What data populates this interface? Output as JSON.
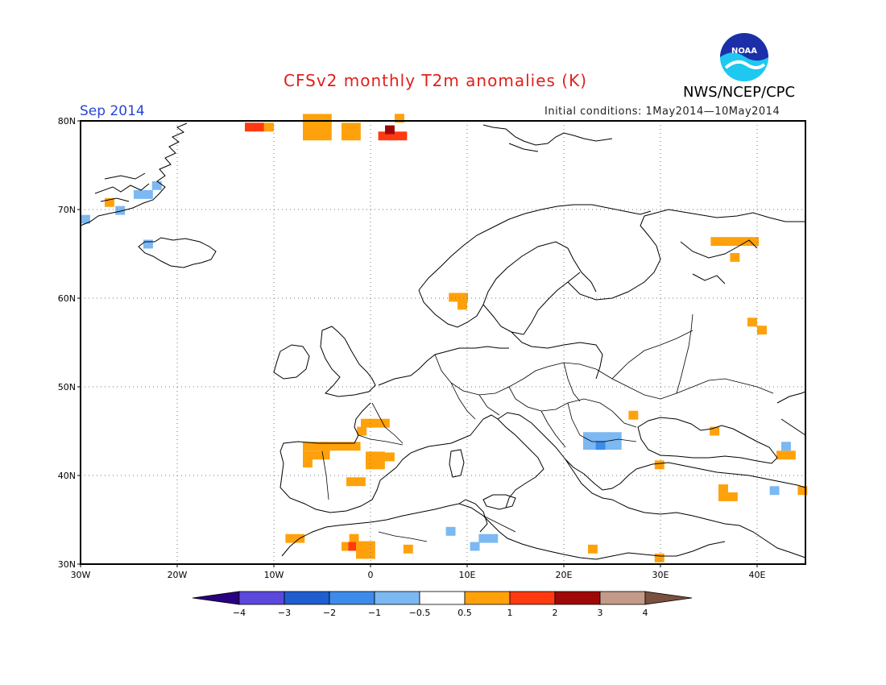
{
  "title": "CFSv2 monthly T2m anomalies (K)",
  "month": "Sep 2014",
  "initial_conditions": "Initial conditions: 1May2014—10May2014",
  "agency": "NWS/NCEP/CPC",
  "logo_text": "NOAA",
  "map": {
    "lon_range": [
      -30,
      45
    ],
    "lat_range": [
      30,
      80
    ],
    "lat_ticks": [
      {
        "v": 80,
        "label": "80N"
      },
      {
        "v": 70,
        "label": "70N"
      },
      {
        "v": 60,
        "label": "60N"
      },
      {
        "v": 50,
        "label": "50N"
      },
      {
        "v": 40,
        "label": "40N"
      },
      {
        "v": 30,
        "label": "30N"
      }
    ],
    "lon_ticks": [
      {
        "v": -30,
        "label": "30W"
      },
      {
        "v": -20,
        "label": "20W"
      },
      {
        "v": -10,
        "label": "10W"
      },
      {
        "v": 0,
        "label": "0"
      },
      {
        "v": 10,
        "label": "10E"
      },
      {
        "v": 20,
        "label": "20E"
      },
      {
        "v": 30,
        "label": "30E"
      },
      {
        "v": 40,
        "label": "40E"
      }
    ],
    "cell_deg": 1.875,
    "anomaly_cells": [
      {
        "lon": -30,
        "lat": 68.4,
        "w": 1,
        "h": 1,
        "value": -0.7
      },
      {
        "lon": -26.4,
        "lat": 69.4,
        "w": 1,
        "h": 1,
        "value": -0.7
      },
      {
        "lon": -24.5,
        "lat": 71.2,
        "w": 2,
        "h": 1,
        "value": -0.7
      },
      {
        "lon": -22.6,
        "lat": 72.2,
        "w": 1,
        "h": 1,
        "value": -0.7
      },
      {
        "lon": -23.5,
        "lat": 65.6,
        "w": 1,
        "h": 1,
        "value": -0.7
      },
      {
        "lon": -27.5,
        "lat": 70.3,
        "w": 1,
        "h": 1,
        "value": 0.7
      },
      {
        "lon": -13.0,
        "lat": 78.8,
        "w": 2,
        "h": 1,
        "value": 1.2
      },
      {
        "lon": -11.0,
        "lat": 78.8,
        "w": 1,
        "h": 1,
        "value": 0.7
      },
      {
        "lon": -7.0,
        "lat": 77.8,
        "w": 3,
        "h": 3,
        "value": 0.7
      },
      {
        "lon": -3.0,
        "lat": 77.8,
        "w": 2,
        "h": 2,
        "value": 0.7
      },
      {
        "lon": 0.8,
        "lat": 77.8,
        "w": 3,
        "h": 1,
        "value": 1.2
      },
      {
        "lon": 1.5,
        "lat": 78.5,
        "w": 1,
        "h": 1,
        "value": 2.5
      },
      {
        "lon": 2.5,
        "lat": 79.8,
        "w": 1,
        "h": 1,
        "value": 0.7
      },
      {
        "lon": 8.1,
        "lat": 59.6,
        "w": 2,
        "h": 1,
        "value": 0.7
      },
      {
        "lon": 9.0,
        "lat": 58.7,
        "w": 1,
        "h": 1,
        "value": 0.7
      },
      {
        "lon": -1.0,
        "lat": 45.4,
        "w": 3,
        "h": 1,
        "value": 0.7
      },
      {
        "lon": -1.4,
        "lat": 44.5,
        "w": 1,
        "h": 1,
        "value": 0.7
      },
      {
        "lon": -7.0,
        "lat": 42.8,
        "w": 6,
        "h": 1,
        "value": 0.7
      },
      {
        "lon": -7.0,
        "lat": 41.8,
        "w": 2,
        "h": 1,
        "value": 0.7
      },
      {
        "lon": -5.2,
        "lat": 41.8,
        "w": 1,
        "h": 2,
        "value": 0.7
      },
      {
        "lon": -7.0,
        "lat": 40.9,
        "w": 1,
        "h": 1,
        "value": 0.7
      },
      {
        "lon": 0.5,
        "lat": 41.6,
        "w": 2,
        "h": 1,
        "value": 0.7
      },
      {
        "lon": -0.5,
        "lat": 40.7,
        "w": 2,
        "h": 2,
        "value": 0.7
      },
      {
        "lon": -2.5,
        "lat": 38.8,
        "w": 2,
        "h": 1,
        "value": 0.7
      },
      {
        "lon": -8.8,
        "lat": 32.4,
        "w": 2,
        "h": 1,
        "value": 0.7
      },
      {
        "lon": -2.2,
        "lat": 32.4,
        "w": 1,
        "h": 1,
        "value": 0.7
      },
      {
        "lon": -3.0,
        "lat": 31.5,
        "w": 2,
        "h": 1,
        "value": 0.7
      },
      {
        "lon": -2.3,
        "lat": 31.5,
        "w": 1,
        "h": 1,
        "value": 1.2
      },
      {
        "lon": -1.5,
        "lat": 30.6,
        "w": 2,
        "h": 2,
        "value": 0.7
      },
      {
        "lon": 3.4,
        "lat": 31.2,
        "w": 1,
        "h": 1,
        "value": 0.7
      },
      {
        "lon": 7.8,
        "lat": 33.2,
        "w": 1,
        "h": 1,
        "value": -0.7
      },
      {
        "lon": 11.2,
        "lat": 32.4,
        "w": 2,
        "h": 1,
        "value": -0.7
      },
      {
        "lon": 10.3,
        "lat": 31.5,
        "w": 1,
        "h": 1,
        "value": -0.7
      },
      {
        "lon": 22.0,
        "lat": 42.9,
        "w": 4,
        "h": 2,
        "value": -0.7
      },
      {
        "lon": 23.3,
        "lat": 42.9,
        "w": 1,
        "h": 1,
        "value": -1.5
      },
      {
        "lon": 26.7,
        "lat": 46.3,
        "w": 1,
        "h": 1,
        "value": 0.7
      },
      {
        "lon": 35.1,
        "lat": 44.5,
        "w": 1,
        "h": 1,
        "value": 0.7
      },
      {
        "lon": 29.4,
        "lat": 40.7,
        "w": 1,
        "h": 1,
        "value": 0.7
      },
      {
        "lon": 36.0,
        "lat": 38.0,
        "w": 1,
        "h": 1,
        "value": 0.7
      },
      {
        "lon": 36.0,
        "lat": 37.1,
        "w": 2,
        "h": 1,
        "value": 0.7
      },
      {
        "lon": 42.0,
        "lat": 41.8,
        "w": 2,
        "h": 1,
        "value": 0.7
      },
      {
        "lon": 42.5,
        "lat": 42.8,
        "w": 1,
        "h": 1,
        "value": -0.7
      },
      {
        "lon": 41.3,
        "lat": 37.8,
        "w": 1,
        "h": 1,
        "value": -0.7
      },
      {
        "lon": 44.2,
        "lat": 37.8,
        "w": 1,
        "h": 1,
        "value": 0.7
      },
      {
        "lon": 22.5,
        "lat": 31.2,
        "w": 1,
        "h": 1,
        "value": 0.7
      },
      {
        "lon": 29.4,
        "lat": 30.2,
        "w": 1,
        "h": 1,
        "value": 0.7
      },
      {
        "lon": 35.2,
        "lat": 65.9,
        "w": 5,
        "h": 1,
        "value": 0.7
      },
      {
        "lon": 37.2,
        "lat": 64.1,
        "w": 1,
        "h": 1,
        "value": 0.7
      },
      {
        "lon": 39.0,
        "lat": 56.8,
        "w": 1,
        "h": 1,
        "value": 0.7
      },
      {
        "lon": 40.0,
        "lat": 55.9,
        "w": 1,
        "h": 1,
        "value": 0.7
      }
    ]
  },
  "colorbar": {
    "labels": [
      "−4",
      "−3",
      "−2",
      "−1",
      "−0.5",
      "0.5",
      "1",
      "2",
      "3",
      "4"
    ],
    "low_color": "#2a0082",
    "high_color": "#7a5040",
    "colors": [
      "#5b49dc",
      "#1f5ed0",
      "#3d8bea",
      "#7cb8f2",
      "#ffffff",
      "#ffa10a",
      "#ff3a10",
      "#a00808",
      "#c49a88"
    ],
    "thresholds": [
      -4,
      -3,
      -2,
      -1,
      -0.5,
      0.5,
      1,
      2,
      3,
      4
    ]
  }
}
